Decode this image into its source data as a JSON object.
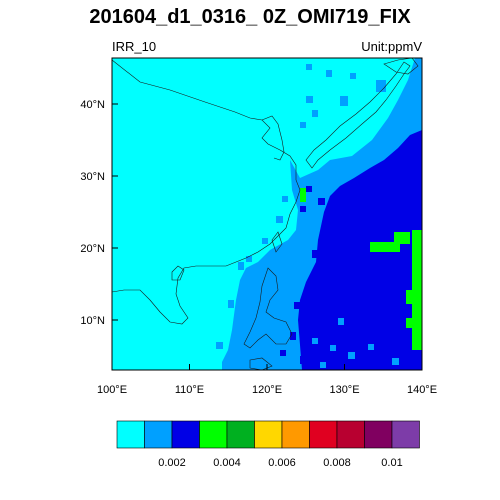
{
  "title": "201604_d1_0316_ 0Z_OMI719_FIX",
  "left_label": "IRR_10",
  "right_label": "Unit:ppmV",
  "lon_ticks": [
    "100°E",
    "110°E",
    "120°E",
    "130°E",
    "140°E"
  ],
  "lat_ticks": [
    "10°N",
    "20°N",
    "30°N",
    "40°N"
  ],
  "colorbar": {
    "colors": [
      "#00ffff",
      "#00a0ff",
      "#0000e6",
      "#00ff00",
      "#00b020",
      "#ffd700",
      "#ff9900",
      "#e00020",
      "#b80030",
      "#800060",
      "#7d3ca8"
    ],
    "labels": [
      "0.002",
      "0.004",
      "0.006",
      "0.008",
      "0.01"
    ]
  },
  "colors": {
    "background_field": "#00ffff",
    "mid_band": "#00a0ff",
    "high_band": "#0000e6",
    "green_patch": "#00ff00"
  }
}
